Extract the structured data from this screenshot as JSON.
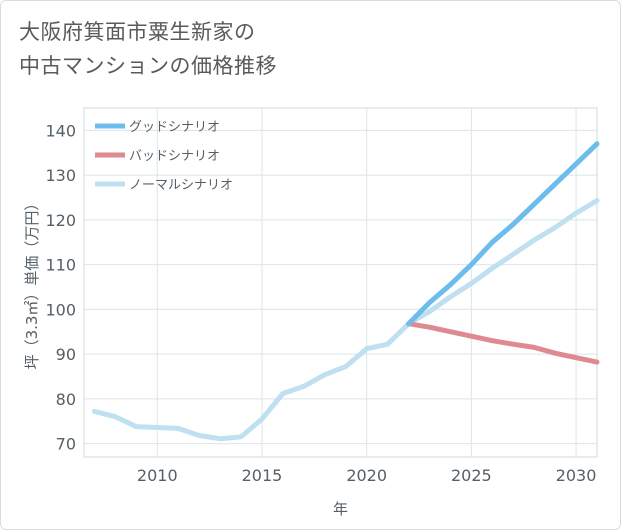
{
  "title": {
    "line1": "大阪府箕面市粟生新家の",
    "line2": "中古マンションの価格推移"
  },
  "chart_data": {
    "type": "line",
    "title": "大阪府箕面市粟生新家の中古マンションの価格推移",
    "xlabel": "年",
    "ylabel": "坪（3.3㎡）単価（万円）",
    "xlim": [
      2006.5,
      2031
    ],
    "ylim": [
      67,
      145
    ],
    "xticks": [
      2010,
      2015,
      2020,
      2025,
      2030
    ],
    "yticks": [
      70,
      80,
      90,
      100,
      110,
      120,
      130,
      140
    ],
    "grid": true,
    "legend_position": "top-left",
    "series": [
      {
        "name": "グッドシナリオ",
        "color": "#6cbcec",
        "x": [
          2022,
          2023,
          2024,
          2025,
          2026,
          2027,
          2028,
          2029,
          2030,
          2031
        ],
        "y": [
          96.8,
          101.5,
          105.5,
          110,
          115,
          119,
          123.5,
          128,
          132.5,
          137
        ]
      },
      {
        "name": "バッドシナリオ",
        "color": "#de8a91",
        "x": [
          2022,
          2023,
          2024,
          2025,
          2026,
          2027,
          2028,
          2029,
          2030,
          2031
        ],
        "y": [
          96.8,
          96,
          95,
          94,
          93,
          92.2,
          91.5,
          90.2,
          89.2,
          88.2
        ]
      },
      {
        "name": "ノーマルシナリオ",
        "color": "#bfe0f0",
        "x": [
          2007,
          2008,
          2009,
          2010,
          2011,
          2012,
          2013,
          2014,
          2015,
          2016,
          2017,
          2018,
          2019,
          2020,
          2021,
          2022,
          2023,
          2024,
          2025,
          2026,
          2027,
          2028,
          2029,
          2030,
          2031
        ],
        "y": [
          77.2,
          76,
          73.8,
          73.6,
          73.4,
          71.8,
          71.1,
          71.5,
          75.5,
          81.2,
          82.8,
          85.4,
          87.2,
          91.2,
          92.2,
          96.8,
          99.5,
          102.8,
          105.8,
          109.2,
          112.3,
          115.5,
          118.3,
          121.5,
          124.3
        ]
      }
    ]
  }
}
